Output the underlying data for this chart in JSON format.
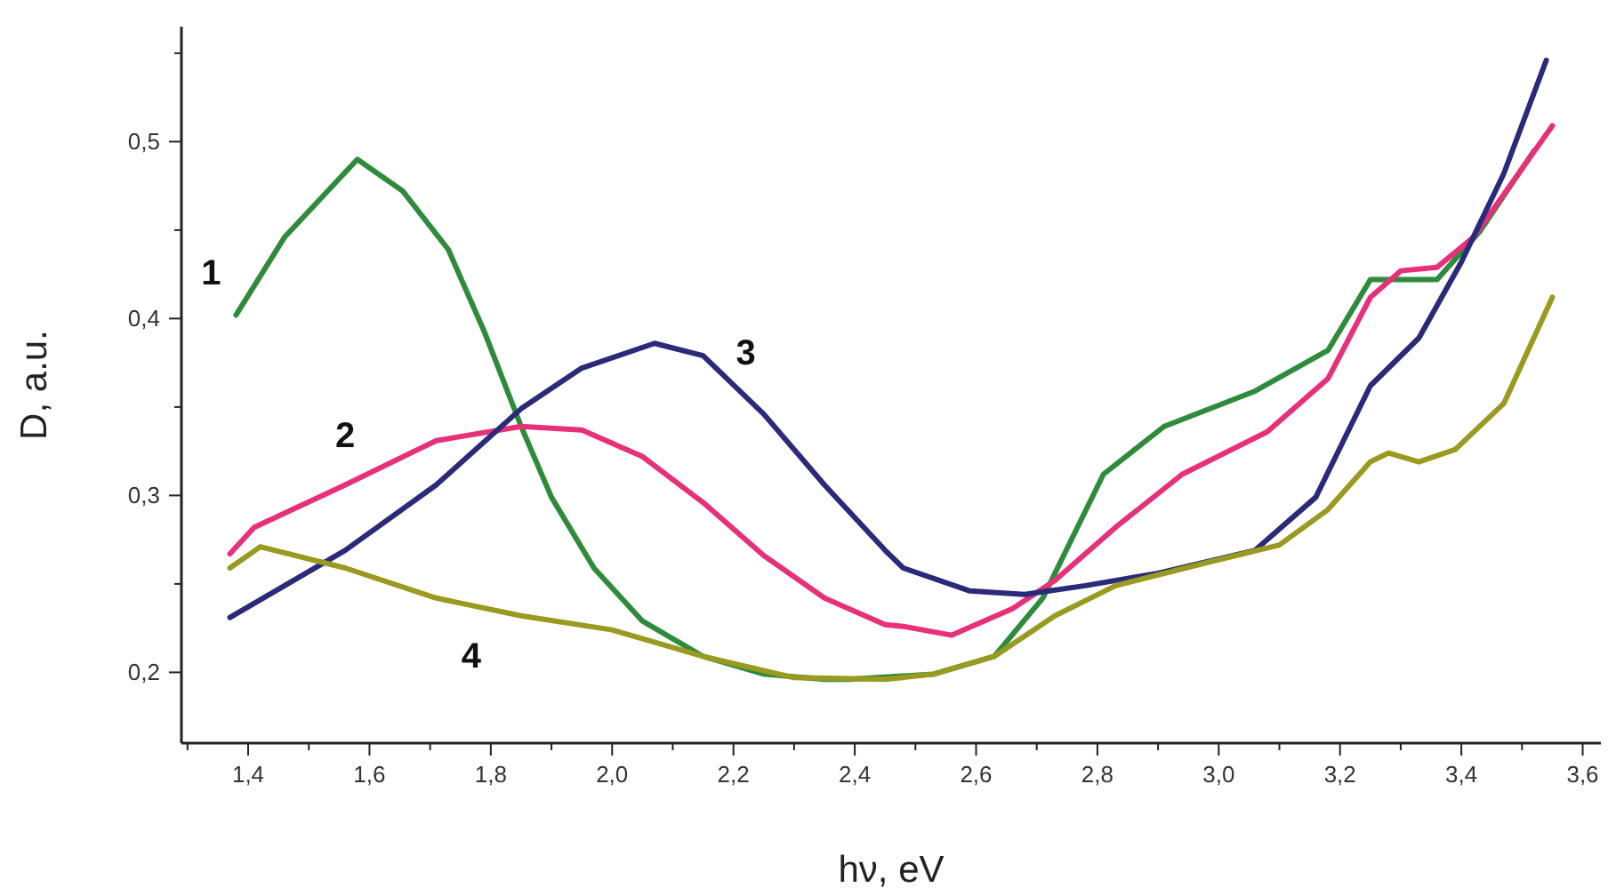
{
  "chart_data": {
    "type": "line",
    "xlabel": "hν, eV",
    "ylabel": "D,  a.u.",
    "xlim": [
      1.29,
      3.63
    ],
    "ylim": [
      0.16,
      0.565
    ],
    "xticks": [
      {
        "value": 1.3,
        "label": null
      },
      {
        "value": 1.4,
        "label": "1,4"
      },
      {
        "value": 1.5,
        "label": null
      },
      {
        "value": 1.6,
        "label": "1,6"
      },
      {
        "value": 1.7,
        "label": null
      },
      {
        "value": 1.8,
        "label": "1,8"
      },
      {
        "value": 1.9,
        "label": null
      },
      {
        "value": 2.0,
        "label": "2,0"
      },
      {
        "value": 2.1,
        "label": null
      },
      {
        "value": 2.2,
        "label": "2,2"
      },
      {
        "value": 2.3,
        "label": null
      },
      {
        "value": 2.4,
        "label": "2,4"
      },
      {
        "value": 2.5,
        "label": null
      },
      {
        "value": 2.6,
        "label": "2,6"
      },
      {
        "value": 2.7,
        "label": null
      },
      {
        "value": 2.8,
        "label": "2,8"
      },
      {
        "value": 2.9,
        "label": null
      },
      {
        "value": 3.0,
        "label": "3,0"
      },
      {
        "value": 3.1,
        "label": null
      },
      {
        "value": 3.2,
        "label": "3,2"
      },
      {
        "value": 3.3,
        "label": null
      },
      {
        "value": 3.4,
        "label": "3,4"
      },
      {
        "value": 3.5,
        "label": null
      },
      {
        "value": 3.6,
        "label": "3,6"
      }
    ],
    "yticks": [
      {
        "value": 0.2,
        "label": "0,2"
      },
      {
        "value": 0.25,
        "label": null
      },
      {
        "value": 0.3,
        "label": "0,3"
      },
      {
        "value": 0.35,
        "label": null
      },
      {
        "value": 0.4,
        "label": "0,4"
      },
      {
        "value": 0.45,
        "label": null
      },
      {
        "value": 0.5,
        "label": "0,5"
      },
      {
        "value": 0.55,
        "label": null
      }
    ],
    "grid": false,
    "marker": "none",
    "line_style": "solid",
    "series": [
      {
        "name": "1",
        "color": "#2e8b3a",
        "x": [
          1.38,
          1.46,
          1.58,
          1.655,
          1.73,
          1.79,
          1.85,
          1.9,
          1.97,
          2.05,
          2.15,
          2.25,
          2.35,
          2.39,
          2.53,
          2.63,
          2.71,
          2.81,
          2.91,
          3.06,
          3.18,
          3.25,
          3.36,
          3.43,
          3.52
        ],
        "values": [
          0.402,
          0.446,
          0.49,
          0.472,
          0.439,
          0.392,
          0.339,
          0.299,
          0.259,
          0.229,
          0.209,
          0.199,
          0.196,
          0.196,
          0.199,
          0.209,
          0.242,
          0.312,
          0.339,
          0.359,
          0.382,
          0.422,
          0.422,
          0.449,
          0.495
        ]
      },
      {
        "name": "2",
        "color": "#e8307a",
        "x": [
          1.37,
          1.41,
          1.56,
          1.71,
          1.85,
          1.95,
          2.05,
          2.15,
          2.25,
          2.35,
          2.45,
          2.48,
          2.56,
          2.66,
          2.73,
          2.83,
          2.94,
          3.08,
          3.18,
          3.25,
          3.3,
          3.36,
          3.42,
          3.55
        ],
        "values": [
          0.267,
          0.282,
          0.306,
          0.331,
          0.339,
          0.337,
          0.322,
          0.296,
          0.266,
          0.242,
          0.227,
          0.226,
          0.221,
          0.236,
          0.252,
          0.282,
          0.312,
          0.336,
          0.366,
          0.412,
          0.427,
          0.429,
          0.446,
          0.509
        ]
      },
      {
        "name": "3",
        "color": "#2a2a7a",
        "x": [
          1.37,
          1.46,
          1.56,
          1.71,
          1.85,
          1.95,
          2.07,
          2.15,
          2.25,
          2.35,
          2.45,
          2.48,
          2.59,
          2.68,
          2.78,
          2.9,
          3.06,
          3.16,
          3.25,
          3.33,
          3.4,
          3.47,
          3.54
        ],
        "values": [
          0.231,
          0.249,
          0.269,
          0.306,
          0.349,
          0.372,
          0.386,
          0.379,
          0.346,
          0.306,
          0.269,
          0.259,
          0.246,
          0.244,
          0.249,
          0.256,
          0.269,
          0.299,
          0.362,
          0.389,
          0.432,
          0.482,
          0.546
        ]
      },
      {
        "name": "4",
        "color": "#9a9a20",
        "x": [
          1.37,
          1.42,
          1.56,
          1.71,
          1.85,
          2.0,
          2.15,
          2.3,
          2.45,
          2.53,
          2.63,
          2.73,
          2.83,
          2.98,
          3.1,
          3.18,
          3.25,
          3.28,
          3.33,
          3.39,
          3.47,
          3.55
        ],
        "values": [
          0.259,
          0.271,
          0.259,
          0.242,
          0.232,
          0.224,
          0.209,
          0.197,
          0.196,
          0.199,
          0.209,
          0.232,
          0.249,
          0.262,
          0.272,
          0.292,
          0.319,
          0.324,
          0.319,
          0.326,
          0.352,
          0.412
        ]
      }
    ]
  }
}
